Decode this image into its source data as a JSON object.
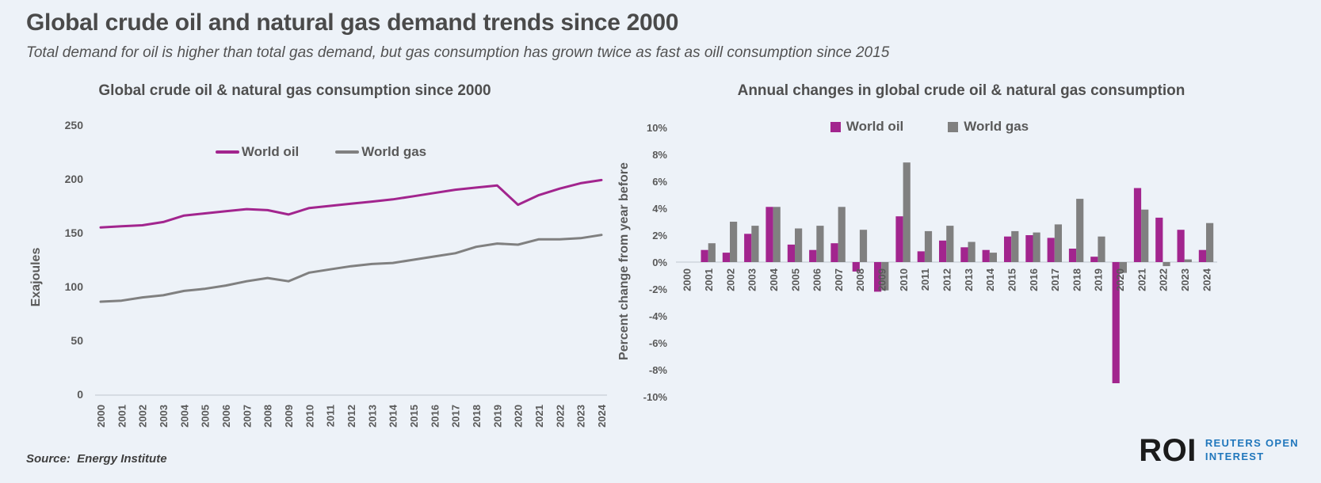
{
  "header": {
    "title": "Global crude oil and natural gas demand trends since 2000",
    "subtitle": "Total demand for oil is higher than total gas demand, but gas consumption has grown twice as fast as oill consumption since 2015"
  },
  "colors": {
    "oil": "#A2258E",
    "gas": "#808080",
    "axis": "#C9CED6",
    "background": "#EDF2F8",
    "text": "#595959",
    "logo_blue": "#2077BC"
  },
  "chart_data": [
    {
      "type": "line",
      "title": "Global crude oil & natural gas consumption since 2000",
      "xlabel": "",
      "ylabel": "Exajoules",
      "ylim": [
        0,
        250
      ],
      "yticks": [
        250,
        200,
        150,
        100,
        50,
        0
      ],
      "ytick_suffix": "",
      "grid": false,
      "legend_position": "inside-top-center",
      "x": [
        2000,
        2001,
        2002,
        2003,
        2004,
        2005,
        2006,
        2007,
        2008,
        2009,
        2010,
        2011,
        2012,
        2013,
        2014,
        2015,
        2016,
        2017,
        2018,
        2019,
        2020,
        2021,
        2022,
        2023,
        2024
      ],
      "series": [
        {
          "name": "World oil",
          "color_key": "oil",
          "values": [
            155,
            156,
            157,
            160,
            166,
            168,
            170,
            172,
            171,
            167,
            173,
            175,
            177,
            179,
            181,
            184,
            187,
            190,
            192,
            194,
            176,
            185,
            191,
            196,
            199
          ]
        },
        {
          "name": "World gas",
          "color_key": "gas",
          "values": [
            86,
            87,
            90,
            92,
            96,
            98,
            101,
            105,
            108,
            105,
            113,
            116,
            119,
            121,
            122,
            125,
            128,
            131,
            137,
            140,
            139,
            144,
            144,
            145,
            148
          ]
        }
      ]
    },
    {
      "type": "bar",
      "title": "Annual changes in global crude oil & natural gas consumption",
      "xlabel": "",
      "ylabel": "Percent change from year before",
      "ylim": [
        -10,
        10
      ],
      "yticks": [
        10,
        8,
        6,
        4,
        2,
        0,
        -2,
        -4,
        -6,
        -8,
        -10
      ],
      "ytick_suffix": "%",
      "grid": false,
      "legend_position": "inside-top-center",
      "x": [
        2000,
        2001,
        2002,
        2003,
        2004,
        2005,
        2006,
        2007,
        2008,
        2009,
        2010,
        2011,
        2012,
        2013,
        2014,
        2015,
        2016,
        2017,
        2018,
        2019,
        2020,
        2021,
        2022,
        2023,
        2024
      ],
      "series": [
        {
          "name": "World oil",
          "color_key": "oil",
          "values": [
            null,
            0.9,
            0.7,
            2.1,
            4.1,
            1.3,
            0.9,
            1.4,
            -0.7,
            -2.2,
            3.4,
            0.8,
            1.6,
            1.1,
            0.9,
            1.9,
            2.0,
            1.8,
            1.0,
            0.4,
            -9.0,
            5.5,
            3.3,
            2.4,
            0.9
          ]
        },
        {
          "name": "World gas",
          "color_key": "gas",
          "values": [
            null,
            1.4,
            3.0,
            2.7,
            4.1,
            2.5,
            2.7,
            4.1,
            2.4,
            -2.1,
            7.4,
            2.3,
            2.7,
            1.5,
            0.7,
            2.3,
            2.2,
            2.8,
            4.7,
            1.9,
            -0.8,
            3.9,
            -0.3,
            0.2,
            2.9
          ]
        }
      ]
    }
  ],
  "footer": {
    "source": "Source:  Energy Institute",
    "logo": {
      "abbr": "ROI",
      "line1": "REUTERS OPEN",
      "line2": "INTEREST"
    }
  }
}
